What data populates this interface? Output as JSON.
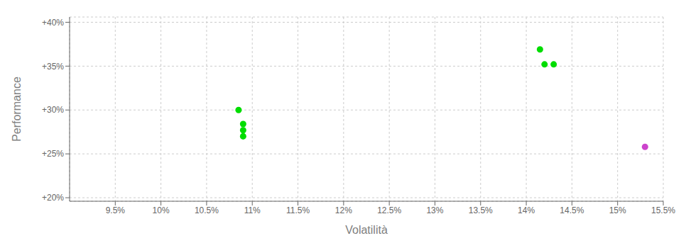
{
  "chart_data": {
    "type": "scatter",
    "xlabel": "Volatilità",
    "ylabel": "Performance",
    "xlim": [
      0.09,
      0.155
    ],
    "ylim": [
      0.196,
      0.406
    ],
    "xticks": [
      {
        "value": 0.095,
        "label": "9.5%"
      },
      {
        "value": 0.1,
        "label": "10%"
      },
      {
        "value": 0.105,
        "label": "10.5%"
      },
      {
        "value": 0.11,
        "label": "11%"
      },
      {
        "value": 0.115,
        "label": "11.5%"
      },
      {
        "value": 0.12,
        "label": "12%"
      },
      {
        "value": 0.125,
        "label": "12.5%"
      },
      {
        "value": 0.13,
        "label": "13%"
      },
      {
        "value": 0.135,
        "label": "13.5%"
      },
      {
        "value": 0.14,
        "label": "14%"
      },
      {
        "value": 0.145,
        "label": "14.5%"
      },
      {
        "value": 0.15,
        "label": "15%"
      },
      {
        "value": 0.155,
        "label": "15.5%"
      }
    ],
    "yticks": [
      {
        "value": 0.2,
        "label": "+20%"
      },
      {
        "value": 0.25,
        "label": "+25%"
      },
      {
        "value": 0.3,
        "label": "+30%"
      },
      {
        "value": 0.35,
        "label": "+35%"
      },
      {
        "value": 0.4,
        "label": "+40%"
      }
    ],
    "grid": true,
    "series": [
      {
        "color": "#00dd00",
        "x": [
          0.1085,
          0.109,
          0.109,
          0.109,
          0.1415,
          0.142,
          0.143
        ],
        "values": [
          0.3,
          0.284,
          0.277,
          0.27,
          0.369,
          0.352,
          0.352
        ]
      },
      {
        "color": "#cc44cc",
        "x": [
          0.153
        ],
        "values": [
          0.258
        ]
      }
    ]
  }
}
